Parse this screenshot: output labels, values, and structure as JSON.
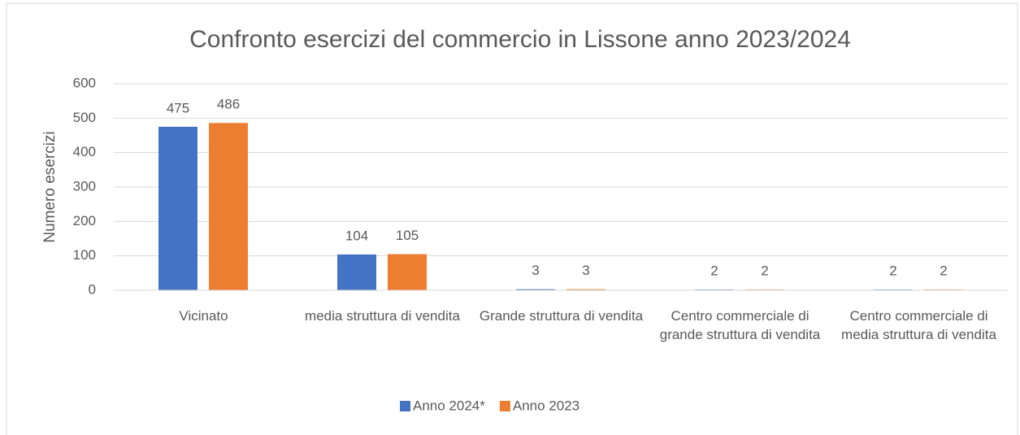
{
  "chart_data": {
    "type": "bar",
    "title": "Confronto esercizi del commercio in Lissone anno 2023/2024",
    "y_label": "Numero esercizi",
    "categories": [
      "Vicinato",
      "media struttura di vendita",
      "Grande struttura di vendita",
      "Centro commerciale di grande struttura di vendita",
      "Centro commerciale di media struttura di vendita"
    ],
    "series": [
      {
        "name": "Anno 2024*",
        "color": "#4472c4",
        "values": [
          475,
          104,
          3,
          2,
          2
        ]
      },
      {
        "name": "Anno 2023",
        "color": "#ed7d31",
        "values": [
          486,
          105,
          3,
          2,
          2
        ]
      }
    ],
    "ylim": [
      0,
      600
    ],
    "yticks": [
      0,
      100,
      200,
      300,
      400,
      500,
      600
    ],
    "grid": true,
    "legend": "bottom"
  }
}
